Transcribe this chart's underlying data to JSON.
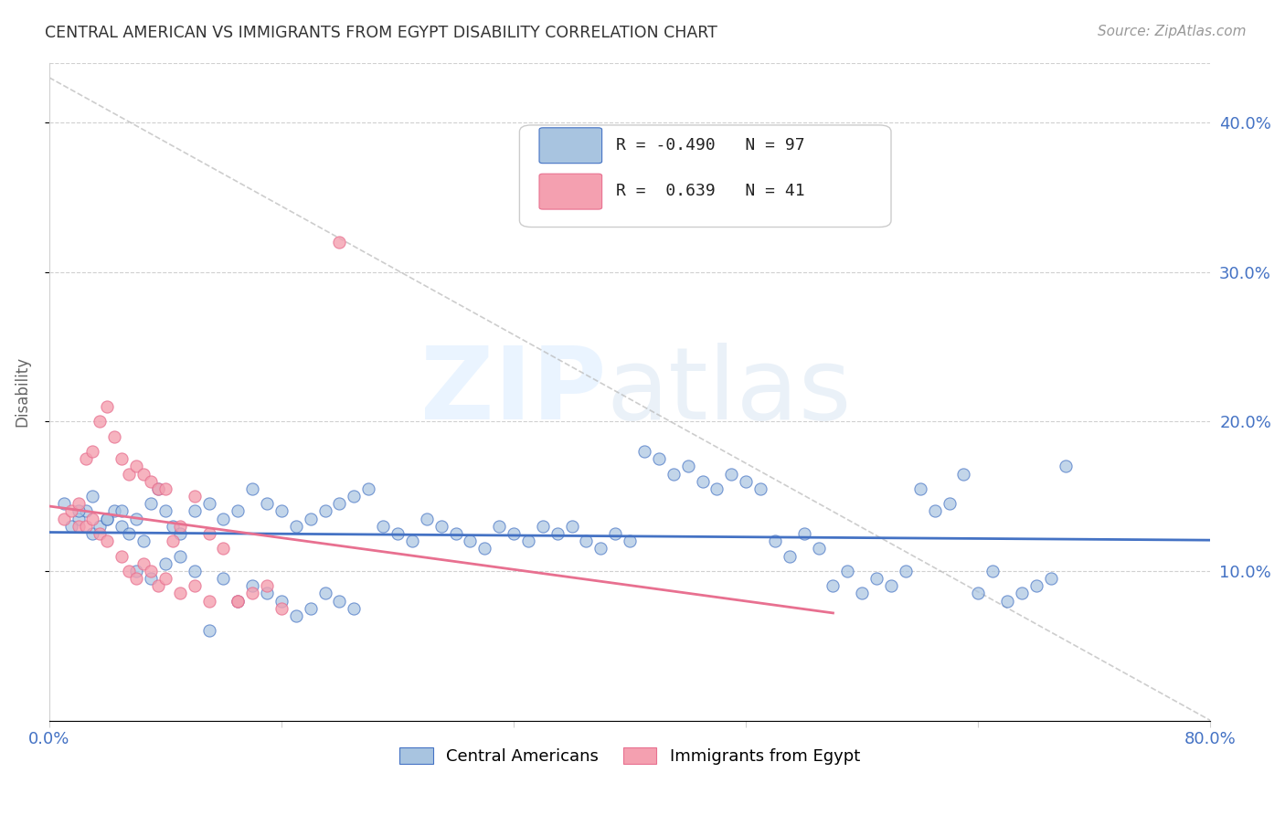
{
  "title": "CENTRAL AMERICAN VS IMMIGRANTS FROM EGYPT DISABILITY CORRELATION CHART",
  "source": "Source: ZipAtlas.com",
  "ylabel": "Disability",
  "ytick_labels": [
    "10.0%",
    "20.0%",
    "30.0%",
    "40.0%"
  ],
  "ytick_values": [
    0.1,
    0.2,
    0.3,
    0.4
  ],
  "xlim": [
    0.0,
    0.8
  ],
  "ylim": [
    0.0,
    0.44
  ],
  "legend_r_blue": "-0.490",
  "legend_n_blue": "97",
  "legend_r_pink": "0.639",
  "legend_n_pink": "41",
  "blue_face_color": "#a8c4e0",
  "pink_face_color": "#f4a0b0",
  "blue_edge_color": "#4472c4",
  "pink_edge_color": "#e87090",
  "blue_scatter_x": [
    0.02,
    0.025,
    0.015,
    0.01,
    0.03,
    0.035,
    0.04,
    0.045,
    0.05,
    0.055,
    0.06,
    0.065,
    0.07,
    0.075,
    0.08,
    0.085,
    0.09,
    0.1,
    0.11,
    0.12,
    0.13,
    0.14,
    0.15,
    0.16,
    0.17,
    0.18,
    0.19,
    0.2,
    0.21,
    0.22,
    0.23,
    0.24,
    0.25,
    0.26,
    0.27,
    0.28,
    0.29,
    0.3,
    0.31,
    0.32,
    0.33,
    0.34,
    0.35,
    0.36,
    0.37,
    0.38,
    0.39,
    0.4,
    0.41,
    0.42,
    0.43,
    0.44,
    0.45,
    0.46,
    0.47,
    0.48,
    0.49,
    0.5,
    0.51,
    0.52,
    0.53,
    0.54,
    0.55,
    0.56,
    0.57,
    0.58,
    0.59,
    0.6,
    0.61,
    0.62,
    0.63,
    0.64,
    0.65,
    0.66,
    0.67,
    0.68,
    0.69,
    0.7,
    0.02,
    0.03,
    0.04,
    0.05,
    0.06,
    0.07,
    0.08,
    0.09,
    0.1,
    0.11,
    0.12,
    0.13,
    0.14,
    0.15,
    0.16,
    0.17,
    0.18,
    0.19,
    0.2,
    0.21
  ],
  "blue_scatter_y": [
    0.135,
    0.14,
    0.13,
    0.145,
    0.125,
    0.13,
    0.135,
    0.14,
    0.13,
    0.125,
    0.135,
    0.12,
    0.145,
    0.155,
    0.14,
    0.13,
    0.125,
    0.14,
    0.145,
    0.135,
    0.14,
    0.155,
    0.145,
    0.14,
    0.13,
    0.135,
    0.14,
    0.145,
    0.15,
    0.155,
    0.13,
    0.125,
    0.12,
    0.135,
    0.13,
    0.125,
    0.12,
    0.115,
    0.13,
    0.125,
    0.12,
    0.13,
    0.125,
    0.13,
    0.12,
    0.115,
    0.125,
    0.12,
    0.18,
    0.175,
    0.165,
    0.17,
    0.16,
    0.155,
    0.165,
    0.16,
    0.155,
    0.12,
    0.11,
    0.125,
    0.115,
    0.09,
    0.1,
    0.085,
    0.095,
    0.09,
    0.1,
    0.155,
    0.14,
    0.145,
    0.165,
    0.085,
    0.1,
    0.08,
    0.085,
    0.09,
    0.095,
    0.17,
    0.14,
    0.15,
    0.135,
    0.14,
    0.1,
    0.095,
    0.105,
    0.11,
    0.1,
    0.06,
    0.095,
    0.08,
    0.09,
    0.085,
    0.08,
    0.07,
    0.075,
    0.085,
    0.08,
    0.075
  ],
  "pink_scatter_x": [
    0.01,
    0.015,
    0.02,
    0.025,
    0.03,
    0.035,
    0.04,
    0.045,
    0.05,
    0.055,
    0.06,
    0.065,
    0.07,
    0.075,
    0.08,
    0.085,
    0.09,
    0.1,
    0.11,
    0.12,
    0.13,
    0.14,
    0.15,
    0.16,
    0.02,
    0.025,
    0.03,
    0.035,
    0.04,
    0.05,
    0.055,
    0.06,
    0.065,
    0.07,
    0.075,
    0.08,
    0.09,
    0.1,
    0.11,
    0.13,
    0.2
  ],
  "pink_scatter_y": [
    0.135,
    0.14,
    0.145,
    0.175,
    0.18,
    0.2,
    0.21,
    0.19,
    0.175,
    0.165,
    0.17,
    0.165,
    0.16,
    0.155,
    0.155,
    0.12,
    0.13,
    0.15,
    0.125,
    0.115,
    0.08,
    0.085,
    0.09,
    0.075,
    0.13,
    0.13,
    0.135,
    0.125,
    0.12,
    0.11,
    0.1,
    0.095,
    0.105,
    0.1,
    0.09,
    0.095,
    0.085,
    0.09,
    0.08,
    0.08,
    0.32
  ]
}
